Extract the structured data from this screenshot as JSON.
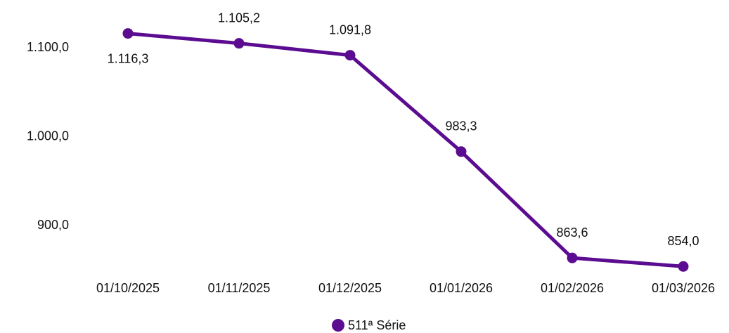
{
  "chart_data": {
    "type": "line",
    "categories": [
      "01/10/2025",
      "01/11/2025",
      "01/12/2025",
      "01/01/2026",
      "01/02/2026",
      "01/03/2026"
    ],
    "series": [
      {
        "name": "511ª Série",
        "color": "#5b0c91",
        "values": [
          1116.3,
          1105.2,
          1091.8,
          983.3,
          863.6,
          854.0
        ],
        "value_labels": [
          "1.116,3",
          "1.105,2",
          "1.091,8",
          "983,3",
          "863,6",
          "854,0"
        ]
      }
    ],
    "ylim": [
      840,
      1150
    ],
    "yticks": [
      {
        "value": 900,
        "label": "900,0"
      },
      {
        "value": 1000,
        "label": "1.000,0"
      },
      {
        "value": 1100,
        "label": "1.100,0"
      }
    ],
    "grid": false,
    "legend": "bottom"
  }
}
